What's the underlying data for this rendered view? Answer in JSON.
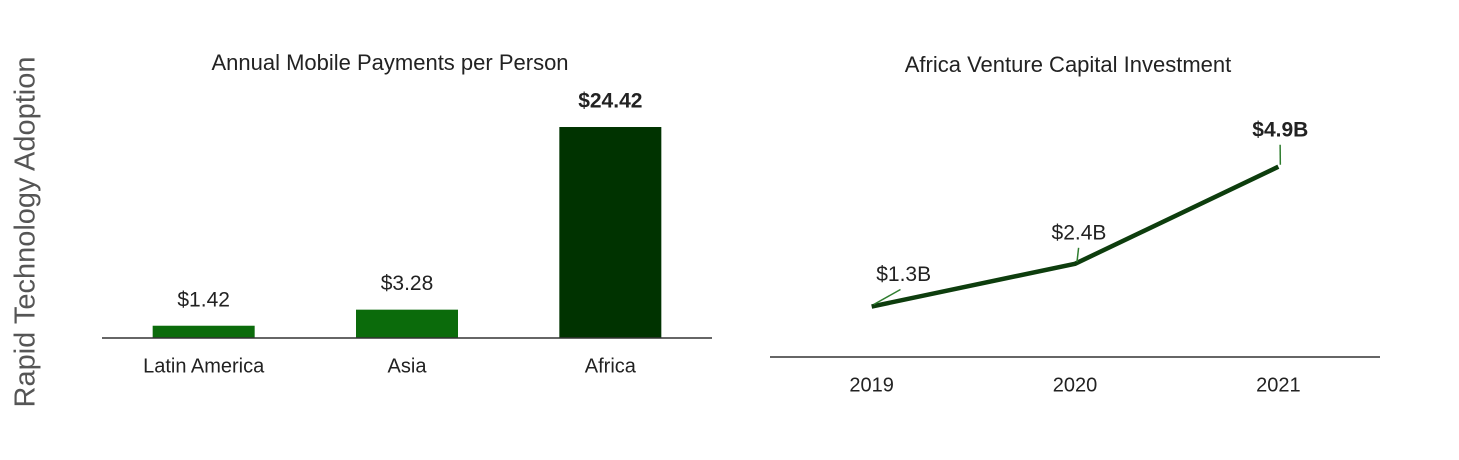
{
  "heading": "Rapid Technology Adoption",
  "chart_data": [
    {
      "type": "bar",
      "title": "Annual Mobile Payments per Person",
      "categories": [
        "Latin America",
        "Asia",
        "Africa"
      ],
      "values": [
        1.42,
        3.28,
        24.42
      ],
      "value_labels": [
        "$1.42",
        "$3.28",
        "$24.42"
      ],
      "colors": [
        "#0b6b0b",
        "#0b6b0b",
        "#003300"
      ],
      "label_colors": [
        "#222222",
        "#237a23",
        "#237a23"
      ],
      "ylim": [
        0,
        25
      ]
    },
    {
      "type": "line",
      "title": "Africa Venture Capital Investment",
      "categories": [
        "2019",
        "2020",
        "2021"
      ],
      "values": [
        1.3,
        2.4,
        4.9
      ],
      "value_labels": [
        "$1.3B",
        "$2.4B",
        "$4.9B"
      ],
      "color": "#0d3d0d",
      "label_color": "#2f7d2f",
      "ylim": [
        0,
        6
      ]
    }
  ]
}
